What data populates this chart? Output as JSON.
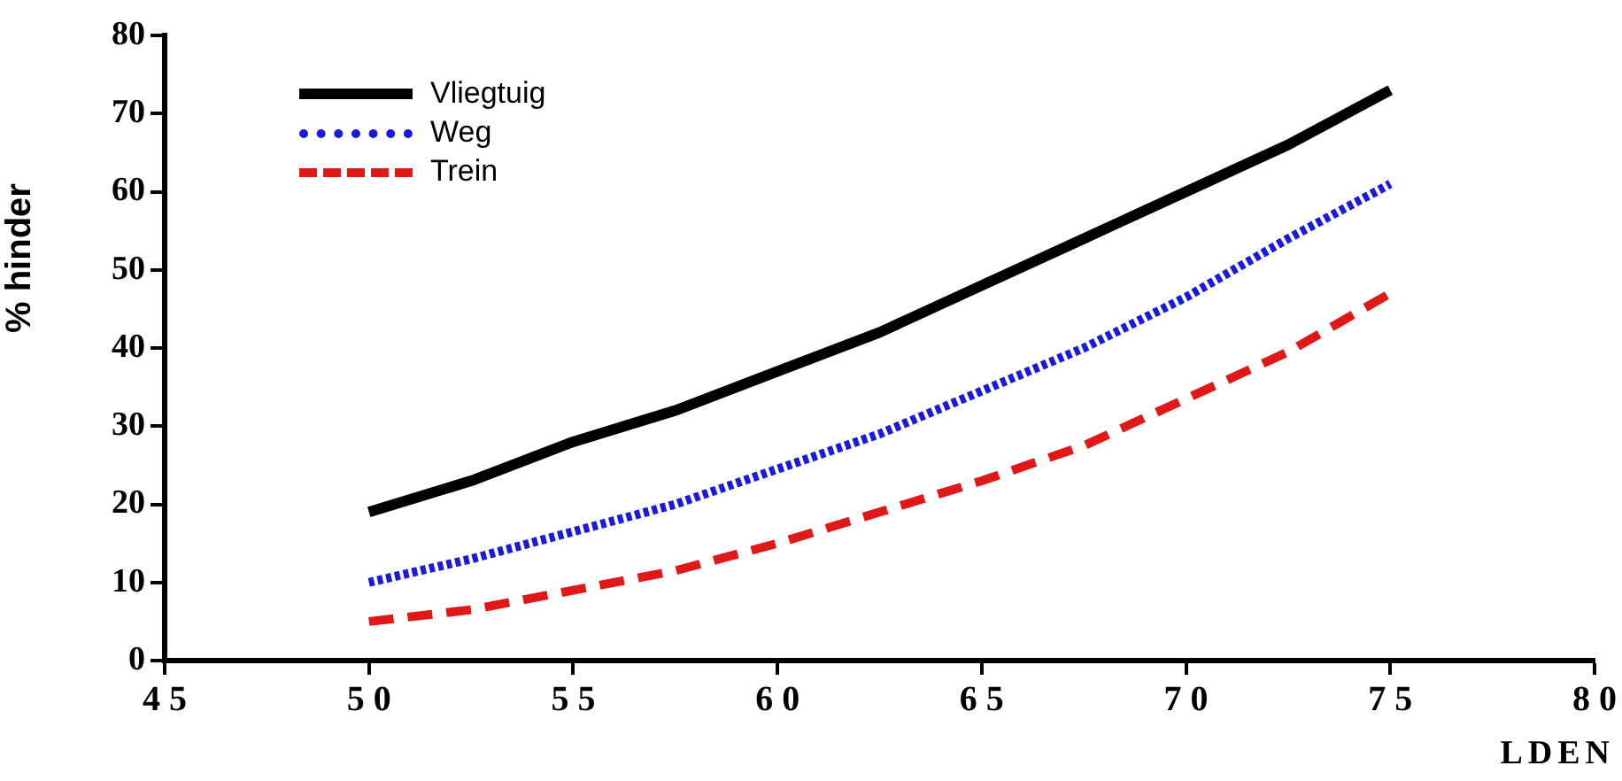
{
  "chart_data": {
    "type": "line",
    "ylabel": "% hinder",
    "xlabel": "LDEN",
    "xlim": [
      45,
      80
    ],
    "xticks": [
      45,
      50,
      55,
      60,
      65,
      70,
      75,
      80
    ],
    "ylim": [
      0,
      80
    ],
    "yticks": [
      0,
      10,
      20,
      30,
      40,
      50,
      60,
      70,
      80
    ],
    "grid": false,
    "legend": "top left",
    "marker": "none",
    "x": [
      50,
      52.5,
      55,
      57.5,
      60,
      62.5,
      65,
      67.5,
      70,
      72.5,
      75
    ],
    "series": [
      {
        "name": "Vliegtuig",
        "color": "#000000",
        "line_style": "solid",
        "values": [
          19,
          23,
          28,
          32,
          37,
          42,
          48,
          54,
          60,
          66,
          73
        ]
      },
      {
        "name": "Weg",
        "color": "#1a1adc",
        "line_style": "dotted",
        "values": [
          10,
          13,
          16.5,
          20,
          24.5,
          29,
          34.5,
          40,
          46.5,
          54,
          61
        ]
      },
      {
        "name": "Trein",
        "color": "#e01818",
        "line_style": "dashed",
        "values": [
          5,
          6.5,
          9,
          11.5,
          15,
          19,
          23,
          27.5,
          33.5,
          39.5,
          47
        ]
      }
    ]
  }
}
